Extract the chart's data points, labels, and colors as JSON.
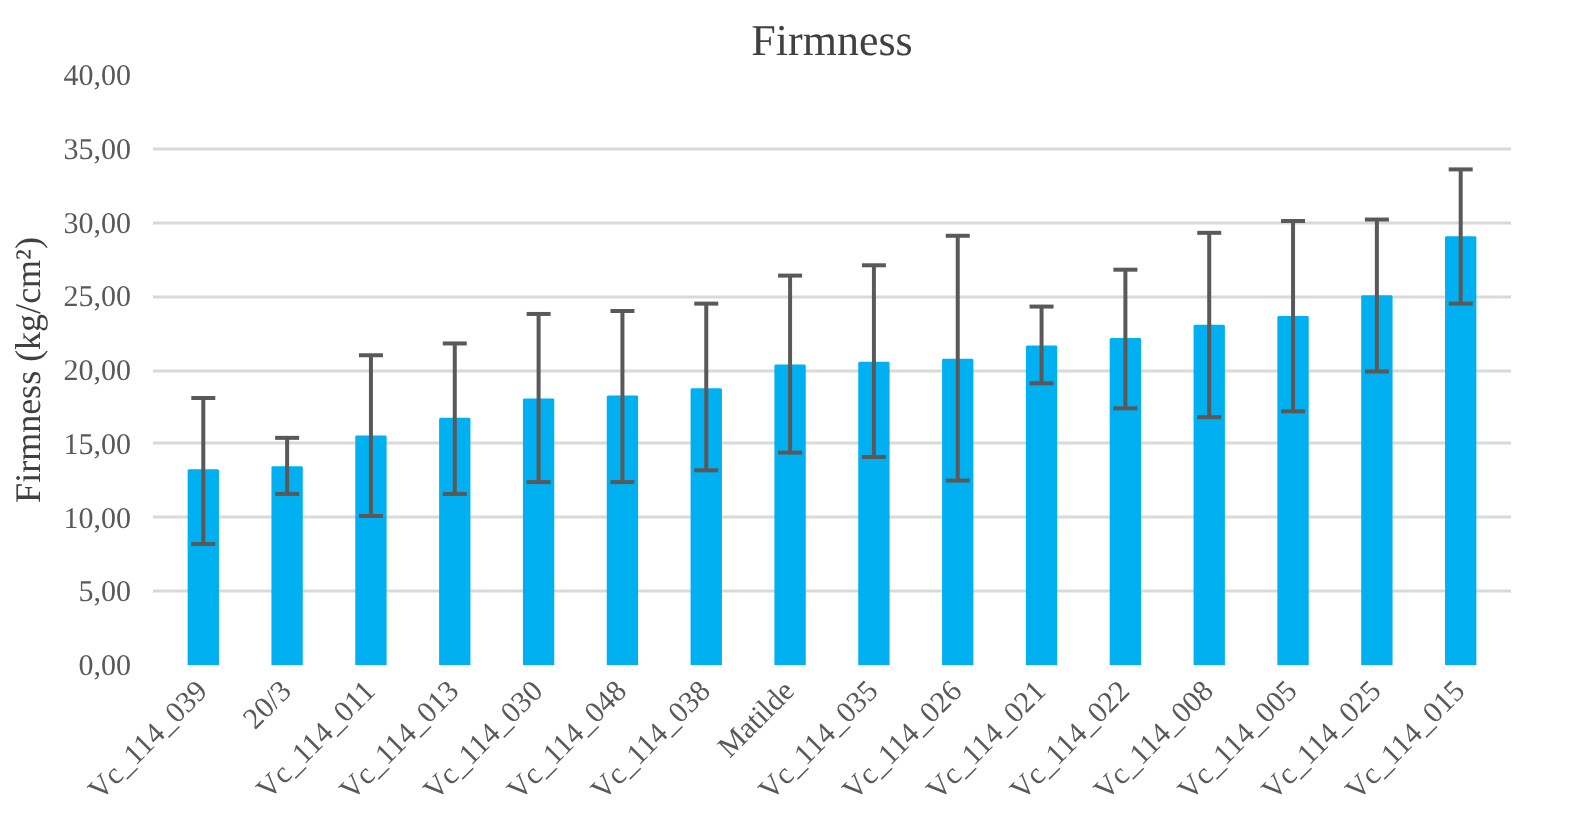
{
  "chart_data": {
    "type": "bar",
    "title": "Firmness",
    "ylabel": "Firmness (kg/cm²)",
    "categories": [
      "Vc_114_039",
      "20/3",
      "Vc_114_011",
      "Vc_114_013",
      "Vc_114_030",
      "Vc_114_048",
      "Vc_114_038",
      "Matilde",
      "Vc_114_035",
      "Vc_114_026",
      "Vc_114_021",
      "Vc_114_022",
      "Vc_114_008",
      "Vc_114_005",
      "Vc_114_025",
      "Vc_114_015"
    ],
    "values": [
      13.2,
      13.4,
      15.5,
      16.7,
      18.0,
      18.2,
      18.7,
      20.3,
      20.5,
      20.7,
      21.6,
      22.1,
      23.0,
      23.6,
      25.0,
      29.0
    ],
    "errors": [
      [
        8.2,
        18.1
      ],
      [
        11.6,
        15.4
      ],
      [
        10.1,
        21.0
      ],
      [
        11.6,
        21.8
      ],
      [
        12.4,
        23.8
      ],
      [
        12.4,
        24.0
      ],
      [
        13.2,
        24.5
      ],
      [
        14.4,
        26.4
      ],
      [
        14.1,
        27.1
      ],
      [
        12.5,
        29.1
      ],
      [
        19.1,
        24.3
      ],
      [
        17.4,
        26.8
      ],
      [
        16.8,
        29.3
      ],
      [
        17.2,
        30.1
      ],
      [
        19.9,
        30.2
      ],
      [
        24.5,
        33.6
      ]
    ],
    "color": "#00b0f0",
    "ylim": [
      0,
      40
    ],
    "yticks": [
      {
        "value": 0,
        "label": "0,00"
      },
      {
        "value": 5,
        "label": "5,00"
      },
      {
        "value": 10,
        "label": "10,00"
      },
      {
        "value": 15,
        "label": "15,00"
      },
      {
        "value": 20,
        "label": "20,00"
      },
      {
        "value": 25,
        "label": "25,00"
      },
      {
        "value": 30,
        "label": "30,00"
      },
      {
        "value": 35,
        "label": "35,00"
      },
      {
        "value": 40,
        "label": "40,00"
      }
    ],
    "grid": "y"
  }
}
